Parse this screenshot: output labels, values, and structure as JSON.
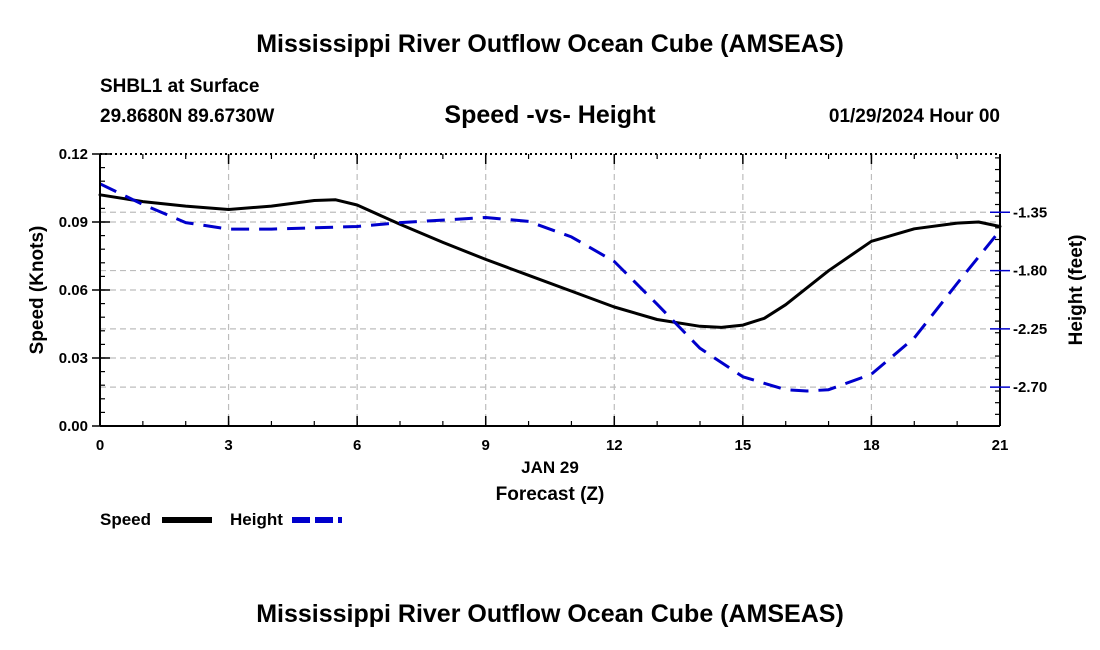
{
  "header": {
    "title": "Mississippi River Outflow Ocean Cube (AMSEAS)",
    "station": "SHBL1 at Surface",
    "location": "29.8680N  89.6730W",
    "chart_title": "Speed -vs- Height",
    "datetime": "01/29/2024 Hour 00"
  },
  "footer": {
    "title": "Mississippi River Outflow Ocean Cube (AMSEAS)"
  },
  "chart_data": {
    "type": "line",
    "title": "Speed -vs- Height",
    "xlabel_date": "JAN 29",
    "xlabel": "Forecast (Z)",
    "ylabel": "Speed (Knots)",
    "y2label": "Height (feet)",
    "xlim": [
      0,
      21
    ],
    "ylim": [
      0,
      0.12
    ],
    "y2lim": [
      -3.0,
      -0.9
    ],
    "x_ticks": [
      0,
      3,
      6,
      9,
      12,
      15,
      18,
      21
    ],
    "x_tick_labels": [
      "0",
      "3",
      "6",
      "9",
      "12",
      "15",
      "18",
      "21"
    ],
    "y_ticks": [
      0,
      0.03,
      0.06,
      0.09,
      0.12
    ],
    "y_tick_labels": [
      "0.00",
      "0.03",
      "0.06",
      "0.09",
      "0.12"
    ],
    "y2_ticks": [
      -1.35,
      -1.8,
      -2.25,
      -2.7
    ],
    "y2_tick_labels": [
      "-1.35",
      "-1.80",
      "-2.25",
      "-2.70"
    ],
    "grid": true,
    "legend": [
      {
        "name": "Speed",
        "color": "#000000",
        "style": "solid"
      },
      {
        "name": "Height",
        "color": "#0000cc",
        "style": "dashed"
      }
    ],
    "series": [
      {
        "name": "Speed",
        "axis": "left",
        "color": "#000000",
        "style": "solid",
        "x": [
          0,
          1,
          2,
          3,
          4,
          5,
          5.5,
          6,
          7,
          8,
          9,
          10,
          11,
          12,
          13,
          14,
          14.5,
          15,
          15.5,
          16,
          17,
          18,
          19,
          20,
          20.5,
          21
        ],
        "values": [
          0.102,
          0.099,
          0.097,
          0.0955,
          0.097,
          0.0995,
          0.0998,
          0.0975,
          0.089,
          0.081,
          0.0735,
          0.0665,
          0.0595,
          0.0525,
          0.047,
          0.044,
          0.0435,
          0.0445,
          0.0475,
          0.0535,
          0.0685,
          0.0815,
          0.087,
          0.0895,
          0.09,
          0.088
        ]
      },
      {
        "name": "Height",
        "axis": "right",
        "color": "#0000cc",
        "style": "dashed",
        "x": [
          0,
          1,
          2,
          3,
          4,
          5,
          6,
          7,
          8,
          9,
          10,
          11,
          12,
          13,
          14,
          15,
          16,
          16.5,
          17,
          18,
          19,
          20,
          21
        ],
        "values": [
          -1.13,
          -1.29,
          -1.43,
          -1.48,
          -1.48,
          -1.47,
          -1.46,
          -1.43,
          -1.41,
          -1.39,
          -1.42,
          -1.54,
          -1.73,
          -2.06,
          -2.4,
          -2.62,
          -2.72,
          -2.73,
          -2.72,
          -2.6,
          -2.32,
          -1.9,
          -1.49
        ]
      }
    ]
  }
}
